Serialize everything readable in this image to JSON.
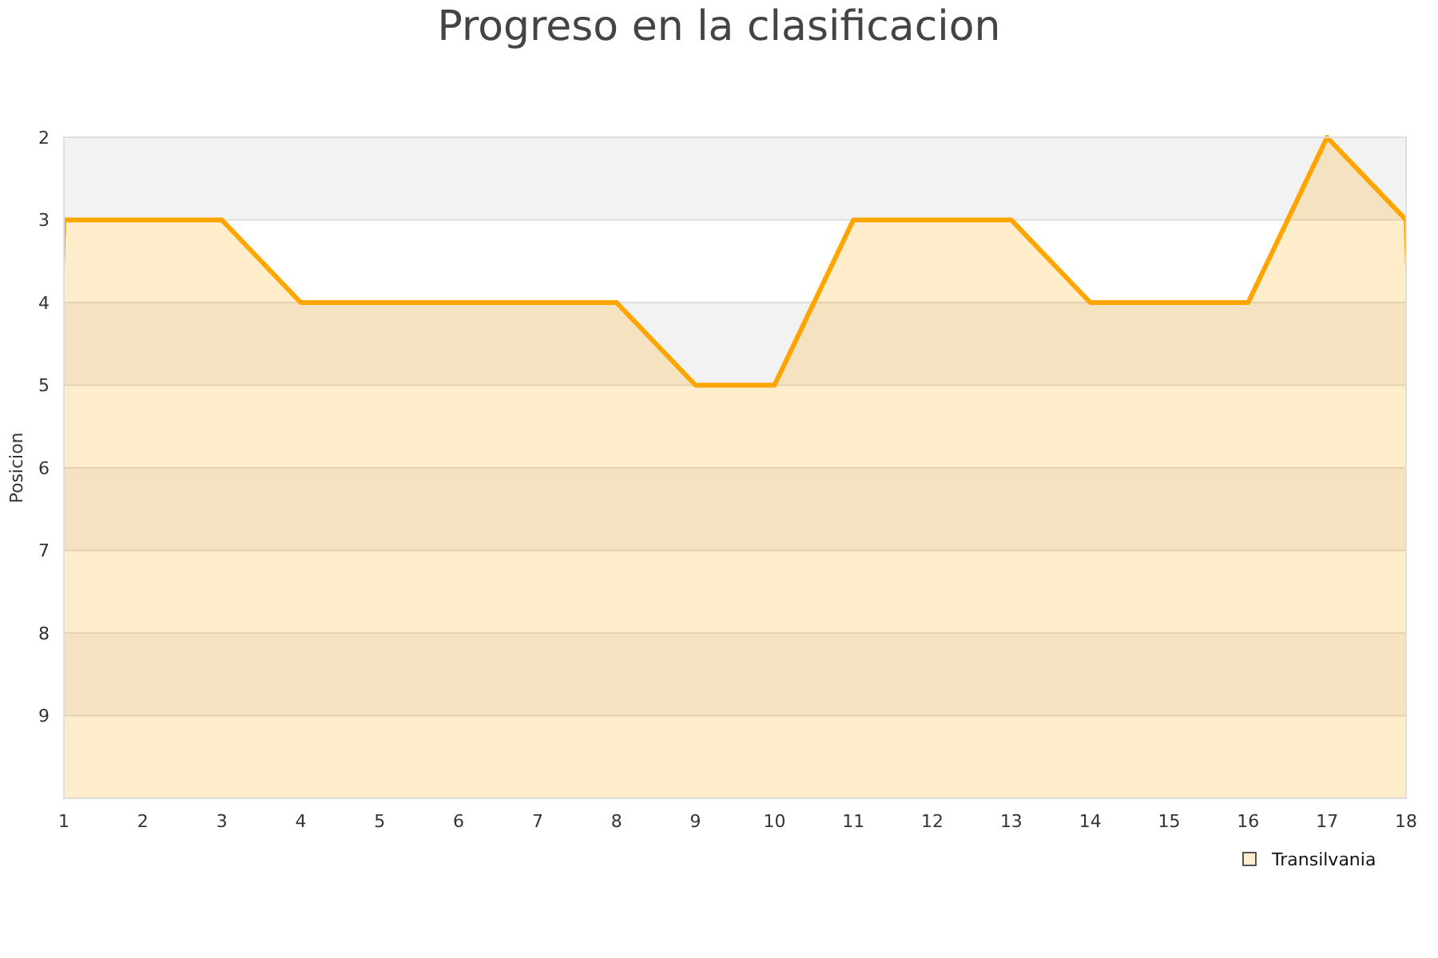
{
  "chart_data": {
    "type": "area",
    "title": "Progreso en la clasificacion",
    "ylabel": "Posicion",
    "x": [
      1,
      2,
      3,
      4,
      5,
      6,
      7,
      8,
      9,
      10,
      11,
      12,
      13,
      14,
      15,
      16,
      17,
      18
    ],
    "series": [
      {
        "name": "Transilvania",
        "color": "#ffa500",
        "values": [
          3,
          3,
          3,
          4,
          4,
          4,
          4,
          4,
          5,
          5,
          3,
          3,
          3,
          4,
          4,
          4,
          2,
          3
        ]
      }
    ],
    "xlim": [
      1,
      18
    ],
    "xticks": [
      1,
      2,
      3,
      4,
      5,
      6,
      7,
      8,
      9,
      10,
      11,
      12,
      13,
      14,
      15,
      16,
      17,
      18
    ],
    "ylim": [
      10,
      2
    ],
    "yticks": [
      2,
      3,
      4,
      5,
      6,
      7,
      8,
      9
    ],
    "grid": "y",
    "legend": "bottom right",
    "line_style": "solid",
    "marker": "none",
    "bands": [
      {
        "axis": "y",
        "from": 2,
        "to": 3,
        "color": "#f2f2f2"
      },
      {
        "axis": "y",
        "from": 4,
        "to": 5,
        "color": "#f2f2f2"
      },
      {
        "axis": "y",
        "from": 6,
        "to": 7,
        "color": "#f2f2f2"
      },
      {
        "axis": "y",
        "from": 8,
        "to": 9,
        "color": "#f2f2f2"
      }
    ]
  }
}
